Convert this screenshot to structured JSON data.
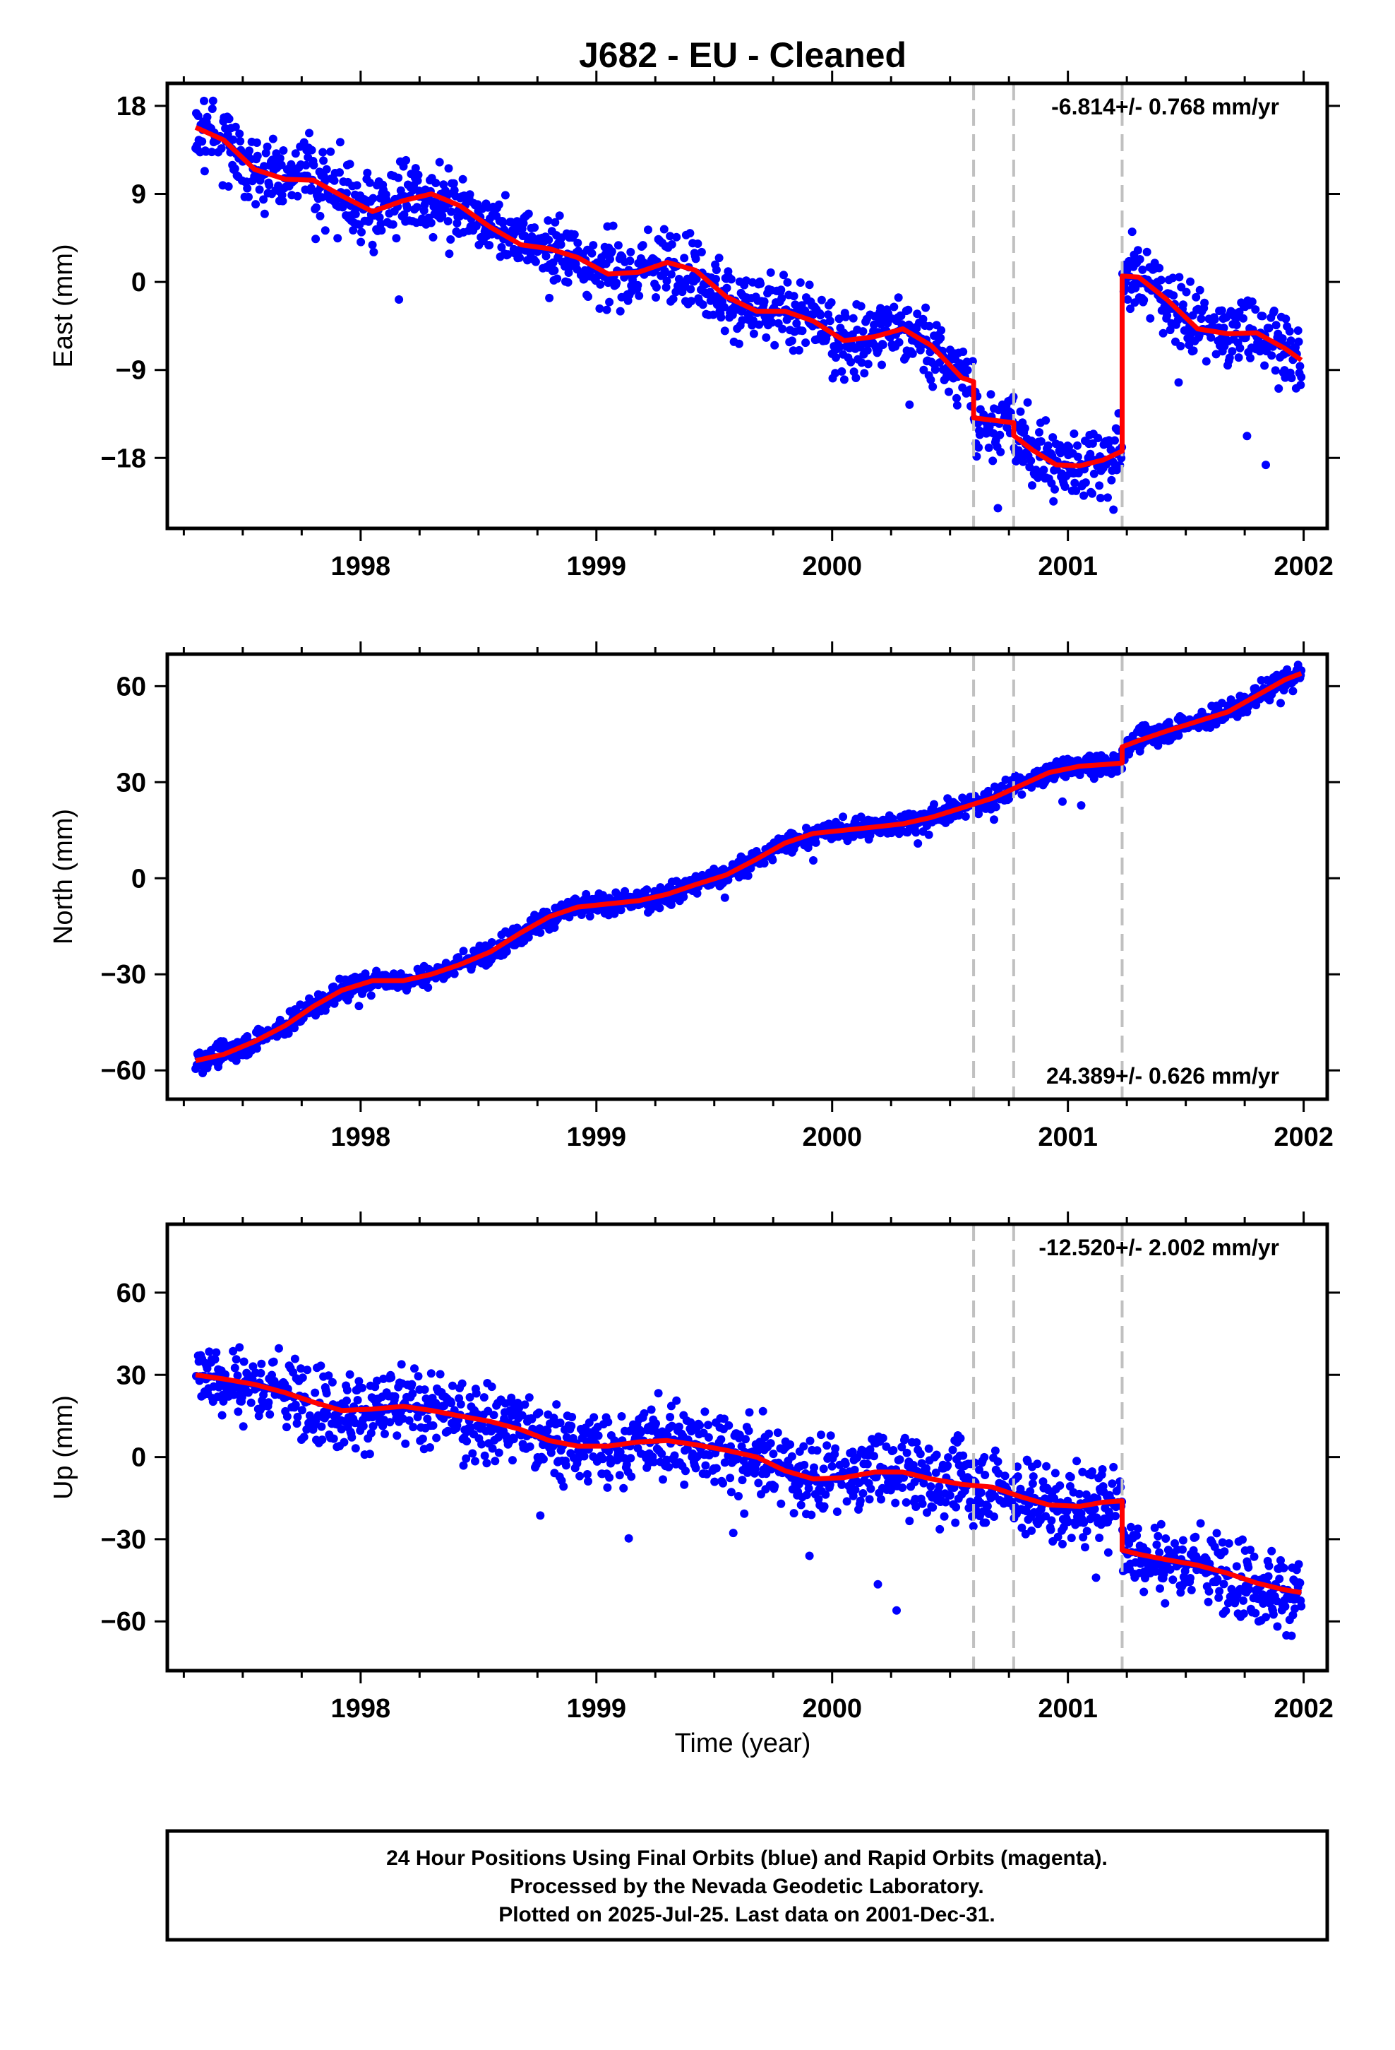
{
  "title": "J682  - EU - Cleaned",
  "xlabel": "Time (year)",
  "footer": [
    "24 Hour Positions Using Final Orbits (blue) and Rapid Orbits (magenta).",
    "Processed by the Nevada Geodetic Laboratory.",
    "Plotted on 2025-Jul-25. Last data on 2001-Dec-31."
  ],
  "colors": {
    "points": "#0000ff",
    "model": "#ff0000",
    "breaks": "#c0c0c0",
    "frame": "#000000"
  },
  "chart_data": [
    {
      "type": "scatter",
      "ylabel": "East (mm)",
      "rate_label": "-6.814+/- 0.768 mm/yr",
      "xlim": [
        1997.18,
        2002.1
      ],
      "ylim": [
        -25.2,
        20.3
      ],
      "x_ticks": [
        1998,
        1999,
        2000,
        2001,
        2002
      ],
      "y_ticks": [
        18,
        9,
        0,
        -9,
        -18
      ],
      "y_tick_labels": [
        "18",
        "9",
        "0",
        "−9",
        "−18"
      ],
      "grid": false,
      "rate_position": "top-right",
      "breaks": [
        2000.6,
        2000.77,
        2001.23
      ],
      "data_span": [
        1997.3,
        2001.99
      ],
      "model_segments": [
        {
          "x": [
            1997.3,
            1997.42,
            1997.55,
            1997.68,
            1997.8,
            1997.92,
            1998.05,
            1998.18,
            1998.3,
            1998.42,
            1998.55,
            1998.68,
            1998.8,
            1998.92,
            1999.05,
            1999.18,
            1999.3,
            1999.42,
            1999.55,
            1999.68,
            1999.8,
            1999.92,
            2000.05,
            2000.18,
            2000.3,
            2000.42,
            2000.55,
            2000.6
          ],
          "y": [
            15.8,
            14.5,
            11.5,
            10.5,
            10.4,
            8.8,
            7.2,
            8.3,
            9.0,
            7.8,
            5.6,
            3.8,
            3.4,
            2.5,
            0.8,
            1.0,
            2.0,
            1.2,
            -1.5,
            -3.0,
            -3.0,
            -4.0,
            -6.0,
            -5.6,
            -4.8,
            -6.5,
            -9.8,
            -10.2
          ]
        },
        {
          "x": [
            2000.6,
            2000.77
          ],
          "y": [
            -13.9,
            -14.4
          ]
        },
        {
          "x": [
            2000.77,
            2000.85,
            2000.95,
            2001.05,
            2001.15,
            2001.23
          ],
          "y": [
            -15.7,
            -17.2,
            -18.7,
            -18.8,
            -18.2,
            -17.3
          ]
        },
        {
          "x": [
            2001.23,
            2001.3,
            2001.42,
            2001.55,
            2001.68,
            2001.8,
            2001.92,
            2001.99
          ],
          "y": [
            0.6,
            0.5,
            -1.8,
            -4.8,
            -5.3,
            -5.2,
            -6.8,
            -8.0
          ]
        }
      ],
      "scatter_sd": 1.8
    },
    {
      "type": "scatter",
      "ylabel": "North (mm)",
      "rate_label": "24.389+/- 0.626 mm/yr",
      "xlim": [
        1997.18,
        2002.1
      ],
      "ylim": [
        -69,
        70
      ],
      "x_ticks": [
        1998,
        1999,
        2000,
        2001,
        2002
      ],
      "y_ticks": [
        60,
        30,
        0,
        -30,
        -60
      ],
      "y_tick_labels": [
        "60",
        "30",
        "0",
        "−30",
        "−60"
      ],
      "grid": false,
      "rate_position": "bottom-right",
      "breaks": [
        2000.6,
        2000.77,
        2001.23
      ],
      "data_span": [
        1997.3,
        2001.99
      ],
      "model_segments": [
        {
          "x": [
            1997.3,
            1997.42,
            1997.55,
            1997.68,
            1997.8,
            1997.92,
            1998.05,
            1998.18,
            1998.3,
            1998.42,
            1998.55,
            1998.68,
            1998.8,
            1998.92,
            1999.05,
            1999.18,
            1999.3,
            1999.42,
            1999.55,
            1999.68,
            1999.8,
            1999.92,
            2000.05,
            2000.18,
            2000.3,
            2000.42,
            2000.55,
            2000.68,
            2000.8,
            2000.92,
            2001.05,
            2001.15,
            2001.23
          ],
          "y": [
            -57,
            -55,
            -51,
            -46,
            -40,
            -35,
            -32,
            -32,
            -30,
            -27,
            -23,
            -17,
            -12,
            -9,
            -8,
            -7,
            -5,
            -2,
            1,
            6,
            11,
            14,
            15,
            16,
            17,
            19,
            22,
            25,
            29,
            33,
            35,
            35.5,
            36
          ]
        },
        {
          "x": [
            2001.23,
            2001.3,
            2001.42,
            2001.55,
            2001.68,
            2001.8,
            2001.92,
            2001.99
          ],
          "y": [
            41,
            43,
            46,
            49,
            52,
            57,
            62,
            64
          ]
        }
      ],
      "scatter_sd": 1.7
    },
    {
      "type": "scatter",
      "ylabel": "Up (mm)",
      "rate_label": "-12.520+/- 2.002 mm/yr",
      "xlim": [
        1997.18,
        2002.1
      ],
      "ylim": [
        -78,
        85
      ],
      "x_ticks": [
        1998,
        1999,
        2000,
        2001,
        2002
      ],
      "y_ticks": [
        60,
        30,
        0,
        -30,
        -60
      ],
      "y_tick_labels": [
        "60",
        "30",
        "0",
        "−30",
        "−60"
      ],
      "grid": false,
      "rate_position": "top-right",
      "breaks": [
        2000.6,
        2000.77,
        2001.23
      ],
      "data_span": [
        1997.3,
        2001.99
      ],
      "model_segments": [
        {
          "x": [
            1997.3,
            1997.42,
            1997.55,
            1997.68,
            1997.8,
            1997.92,
            1998.05,
            1998.18,
            1998.3,
            1998.42,
            1998.55,
            1998.68,
            1998.8,
            1998.92,
            1999.05,
            1999.18,
            1999.3,
            1999.42,
            1999.55,
            1999.68,
            1999.8,
            1999.92,
            2000.05,
            2000.18,
            2000.3,
            2000.42,
            2000.55,
            2000.68,
            2000.8,
            2000.92,
            2001.05,
            2001.15,
            2001.23
          ],
          "y": [
            30,
            28.5,
            26.5,
            23.5,
            20,
            17,
            17.5,
            18.5,
            17,
            15,
            13,
            10,
            6,
            4,
            4,
            5.5,
            6,
            4.5,
            2.5,
            0,
            -5,
            -8,
            -7.5,
            -5.5,
            -5.5,
            -8,
            -10,
            -11,
            -14.5,
            -17.5,
            -18,
            -16.5,
            -16
          ]
        },
        {
          "x": [
            2001.23,
            2001.3,
            2001.42,
            2001.55,
            2001.68,
            2001.8,
            2001.92,
            2001.99
          ],
          "y": [
            -34,
            -35.5,
            -37.5,
            -39.5,
            -42.5,
            -46,
            -48.5,
            -49.5
          ]
        }
      ],
      "scatter_sd": 7.0
    }
  ]
}
